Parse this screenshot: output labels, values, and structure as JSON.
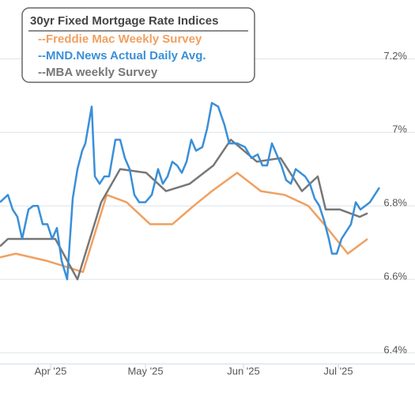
{
  "chart_data": {
    "type": "line",
    "legend_title": "30yr Fixed Mortgage Rate Indices",
    "xlim": [
      -16,
      115.25
    ],
    "ylim": [
      6.37,
      7.36
    ],
    "xticks": [
      {
        "value": 0,
        "label": "Apr '25"
      },
      {
        "value": 30,
        "label": "May '25"
      },
      {
        "value": 61,
        "label": "Jun '25"
      },
      {
        "value": 91,
        "label": "Jul '25"
      }
    ],
    "yticks": [
      {
        "value": 7.2,
        "label": "7.2%"
      },
      {
        "value": 7,
        "label": "7%"
      },
      {
        "value": 6.8,
        "label": "6.8%"
      },
      {
        "value": 6.6,
        "label": "6.6%"
      },
      {
        "value": 6.4,
        "label": "6.4%"
      }
    ],
    "grid": true,
    "series": [
      {
        "name": "--Freddie Mac Weekly Survey",
        "color": "#f0a060",
        "x": [
          -16,
          -11,
          -1,
          6.5,
          10.25,
          17.75,
          24,
          31.5,
          38.5,
          45.25,
          51,
          59,
          66.5,
          74,
          81.5,
          86.5,
          94,
          100.25
        ],
        "values": [
          6.66,
          6.67,
          6.65,
          6.63,
          6.62,
          6.83,
          6.81,
          6.75,
          6.75,
          6.8,
          6.84,
          6.89,
          6.84,
          6.83,
          6.8,
          6.75,
          6.67,
          6.71
        ]
      },
      {
        "name": "--MND.News Actual Daily Avg.",
        "color": "#3a8fd8",
        "x": [
          -16,
          -13.5,
          -12,
          -10.5,
          -9,
          -7,
          -5.5,
          -4,
          -2.5,
          -1,
          0.5,
          2,
          3.5,
          5.25,
          7,
          8.5,
          10,
          11,
          12,
          13,
          14,
          15.5,
          17,
          18.5,
          20.5,
          22,
          23.5,
          25,
          26.5,
          28,
          30,
          32,
          34,
          35.5,
          37,
          38.5,
          40,
          41.5,
          43,
          44.5,
          46,
          48,
          49.5,
          51,
          53,
          55,
          56.5,
          59,
          61.5,
          63.5,
          65.5,
          67,
          68.5,
          70,
          71.5,
          73,
          74.5,
          76,
          77.5,
          79,
          80.5,
          82,
          83.5,
          85,
          86.5,
          88,
          89,
          90.5,
          92,
          93.5,
          95,
          96.5,
          98,
          99.5,
          101,
          102.5,
          104
        ],
        "values": [
          6.81,
          6.83,
          6.79,
          6.77,
          6.71,
          6.79,
          6.8,
          6.8,
          6.75,
          6.75,
          6.71,
          6.74,
          6.65,
          6.6,
          6.82,
          6.9,
          6.95,
          6.97,
          7.02,
          7.07,
          6.88,
          6.86,
          6.88,
          6.88,
          6.98,
          6.98,
          6.93,
          6.9,
          6.83,
          6.81,
          6.81,
          6.83,
          6.9,
          6.86,
          6.88,
          6.92,
          6.91,
          6.89,
          6.92,
          6.98,
          6.95,
          6.96,
          7.01,
          7.08,
          7.07,
          7.02,
          6.97,
          6.97,
          6.96,
          6.93,
          6.94,
          6.91,
          6.91,
          6.97,
          6.94,
          6.91,
          6.87,
          6.86,
          6.9,
          6.89,
          6.88,
          6.86,
          6.82,
          6.8,
          6.76,
          6.71,
          6.67,
          6.67,
          6.71,
          6.73,
          6.75,
          6.81,
          6.79,
          6.8,
          6.81,
          6.83,
          6.85
        ]
      },
      {
        "name": "--MBA weekly Survey",
        "color": "#777777",
        "x": [
          -16,
          -13.5,
          -8.5,
          1.5,
          8.5,
          16,
          22,
          30.25,
          36.5,
          44,
          51.5,
          57,
          65.25,
          72.75,
          79.5,
          84.5,
          87,
          91.5,
          97.75,
          100.25
        ],
        "values": [
          6.69,
          6.71,
          6.71,
          6.71,
          6.6,
          6.81,
          6.9,
          6.89,
          6.84,
          6.86,
          6.91,
          6.98,
          6.92,
          6.93,
          6.84,
          6.88,
          6.79,
          6.79,
          6.77,
          6.78
        ]
      }
    ]
  }
}
